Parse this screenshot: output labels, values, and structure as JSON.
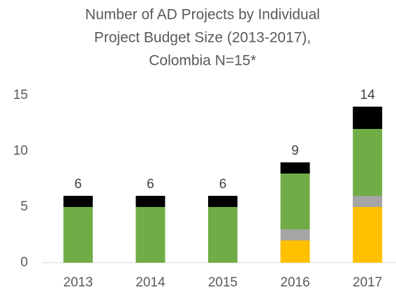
{
  "chart_data": {
    "type": "stacked_bar",
    "title": [
      "Number of AD Projects by Individual",
      "Project Budget Size (2013-2017),",
      "Colombia N=15*"
    ],
    "categories": [
      "2013",
      "2014",
      "2015",
      "2016",
      "2017"
    ],
    "series": [
      {
        "color": "#ffc000",
        "values": [
          0,
          0,
          0,
          2,
          5
        ]
      },
      {
        "color": "#a5a5a5",
        "values": [
          0,
          0,
          0,
          1,
          1
        ]
      },
      {
        "color": "#70ad47",
        "values": [
          5,
          5,
          5,
          5,
          6
        ]
      },
      {
        "color": "#000000",
        "values": [
          1,
          1,
          1,
          1,
          2
        ]
      }
    ],
    "totals": [
      6,
      6,
      6,
      9,
      14
    ],
    "ylim": [
      0,
      15
    ],
    "yticks": [
      0,
      5,
      10,
      15
    ],
    "grid": false
  }
}
